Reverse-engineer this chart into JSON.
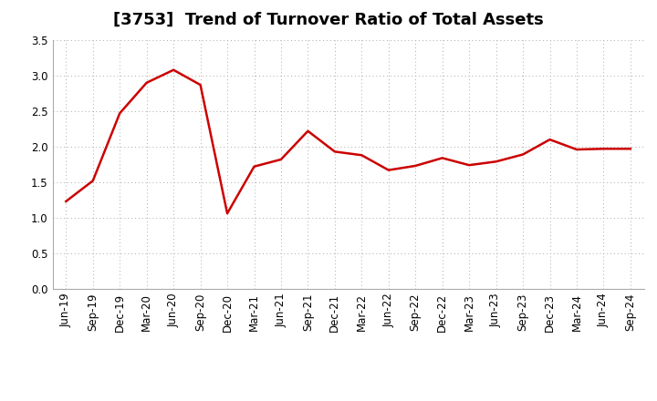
{
  "title": "[3753]  Trend of Turnover Ratio of Total Assets",
  "labels": [
    "Jun-19",
    "Sep-19",
    "Dec-19",
    "Mar-20",
    "Jun-20",
    "Sep-20",
    "Dec-20",
    "Mar-21",
    "Jun-21",
    "Sep-21",
    "Dec-21",
    "Mar-22",
    "Jun-22",
    "Sep-22",
    "Dec-22",
    "Mar-23",
    "Jun-23",
    "Sep-23",
    "Dec-23",
    "Mar-24",
    "Jun-24",
    "Sep-24"
  ],
  "values": [
    1.23,
    1.52,
    2.47,
    2.9,
    3.08,
    2.87,
    1.06,
    1.72,
    1.82,
    2.22,
    1.93,
    1.88,
    1.67,
    1.73,
    1.84,
    1.74,
    1.79,
    1.89,
    2.1,
    1.96,
    1.97,
    1.97
  ],
  "line_color": "#CC0000",
  "line_width": 1.8,
  "ylim": [
    0.0,
    3.5
  ],
  "yticks": [
    0.0,
    0.5,
    1.0,
    1.5,
    2.0,
    2.5,
    3.0,
    3.5
  ],
  "grid_color": "#aaaaaa",
  "bg_color": "#ffffff",
  "title_fontsize": 13,
  "tick_fontsize": 8.5,
  "title_color": "#000000",
  "title_fontweight": "bold"
}
